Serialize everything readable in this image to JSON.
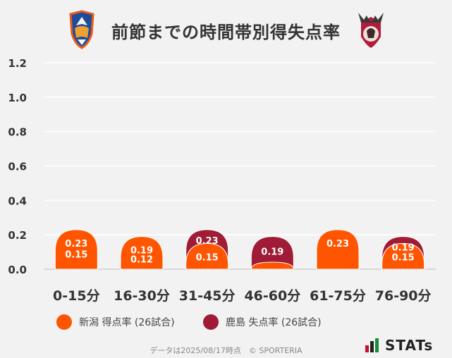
{
  "title": "前節までの時間帯別得失点率",
  "chart_data": {
    "type": "bar",
    "categories": [
      "0-15分",
      "16-30分",
      "31-45分",
      "46-60分",
      "61-75分",
      "76-90分"
    ],
    "series": [
      {
        "name": "新潟 得点率 (26試合)",
        "color": "#ff5500",
        "values": [
          0.23,
          0.19,
          0.15,
          0.0,
          0.23,
          0.15
        ]
      },
      {
        "name": "鹿島 失点率 (26試合)",
        "color": "#a01b35",
        "values": [
          0.15,
          0.12,
          0.23,
          0.19,
          0.0,
          0.19
        ]
      }
    ],
    "layering": "overlap (bars share baseline; taller bar drawn behind, label of rear bar placed in exposed top section)",
    "data_labels": [
      {
        "category": "0-15分",
        "front": "0.23",
        "back": "0.15"
      },
      {
        "category": "16-30分",
        "front": "0.19",
        "back": "0.12"
      },
      {
        "category": "31-45分",
        "front": "0.15",
        "back": "0.23"
      },
      {
        "category": "46-60分",
        "front": "",
        "back": "0.19"
      },
      {
        "category": "61-75分",
        "front": "0.23",
        "back": ""
      },
      {
        "category": "76-90分",
        "front": "0.15",
        "back": "0.19"
      }
    ],
    "ylim": [
      0,
      1.2
    ],
    "yticks": [
      "0.0",
      "0.2",
      "0.4",
      "0.6",
      "0.8",
      "1.0",
      "1.2"
    ],
    "grid": true,
    "legend_position": "bottom"
  },
  "legend": {
    "home": {
      "label": "新潟 得点率 (26試合)",
      "color": "#ff5500"
    },
    "away": {
      "label": "鹿島 失点率 (26試合)",
      "color": "#a01b35"
    }
  },
  "footer": "データは2025/08/17時点　© SPORTERIA",
  "brand": "STATs"
}
